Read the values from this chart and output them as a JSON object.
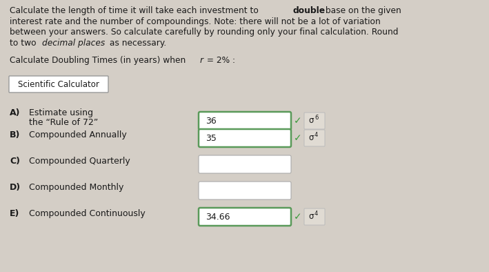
{
  "bg_color": "#d4cec6",
  "white": "#ffffff",
  "green_border": "#5a9a5a",
  "dark_text": "#1a1a1a",
  "gray_box_bg": "#d0cbc3",
  "gray_border": "#aaaaaa",
  "check_color": "#3a9a3a",
  "header_lines": [
    [
      [
        "Calculate the length of time it will take each investment to ",
        false,
        false
      ],
      [
        "double",
        true,
        false
      ],
      [
        " base on the given",
        false,
        false
      ]
    ],
    [
      [
        "interest rate and the number of compoundings. Note: there will not be a lot of variation",
        false,
        false
      ]
    ],
    [
      [
        "between your answers. So calculate carefully by rounding only your final calculation. Round",
        false,
        false
      ]
    ],
    [
      [
        "to two ",
        false,
        false
      ],
      [
        "decimal places",
        false,
        true
      ],
      [
        " as necessary.",
        false,
        false
      ]
    ]
  ],
  "subheader_parts": [
    [
      "Calculate Doubling Times (in years) when ",
      false,
      false
    ],
    [
      "r",
      false,
      true
    ],
    [
      " = 2% :",
      false,
      false
    ]
  ],
  "button_label": "Scientific Calculator",
  "rows": [
    {
      "letter": "A)",
      "label1": "Estimate using",
      "label2": "the “Rule of 72”",
      "value": "36",
      "checked": true,
      "sup": "6"
    },
    {
      "letter": "B)",
      "label1": "Compounded Annually",
      "label2": "",
      "value": "35",
      "checked": true,
      "sup": "4"
    },
    {
      "letter": "C)",
      "label1": "Compounded Quarterly",
      "label2": "",
      "value": "",
      "checked": false,
      "sup": ""
    },
    {
      "letter": "D)",
      "label1": "Compounded Monthly",
      "label2": "",
      "value": "",
      "checked": false,
      "sup": ""
    },
    {
      "letter": "E)",
      "label1": "Compounded Continuously",
      "label2": "",
      "value": "34.66",
      "checked": true,
      "sup": "4"
    }
  ],
  "fontsize_main": 8.8,
  "fontsize_btn": 8.5,
  "fontsize_row": 9.0,
  "fontsize_val": 9.0
}
